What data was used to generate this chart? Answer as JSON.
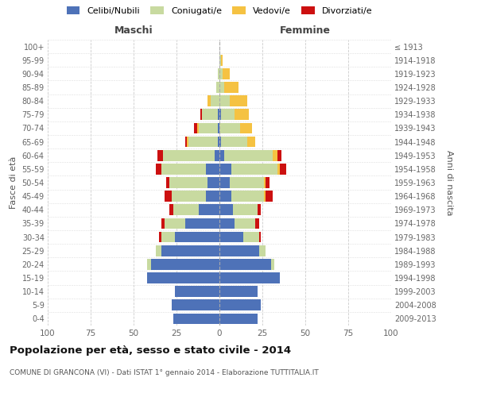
{
  "age_groups": [
    "0-4",
    "5-9",
    "10-14",
    "15-19",
    "20-24",
    "25-29",
    "30-34",
    "35-39",
    "40-44",
    "45-49",
    "50-54",
    "55-59",
    "60-64",
    "65-69",
    "70-74",
    "75-79",
    "80-84",
    "85-89",
    "90-94",
    "95-99",
    "100+"
  ],
  "birth_years": [
    "2009-2013",
    "2004-2008",
    "1999-2003",
    "1994-1998",
    "1989-1993",
    "1984-1988",
    "1979-1983",
    "1974-1978",
    "1969-1973",
    "1964-1968",
    "1959-1963",
    "1954-1958",
    "1949-1953",
    "1944-1948",
    "1939-1943",
    "1934-1938",
    "1929-1933",
    "1924-1928",
    "1919-1923",
    "1914-1918",
    "≤ 1913"
  ],
  "maschi": {
    "celibi": [
      27,
      28,
      26,
      42,
      40,
      34,
      26,
      20,
      12,
      8,
      7,
      8,
      3,
      1,
      1,
      1,
      0,
      0,
      0,
      0,
      0
    ],
    "coniugati": [
      0,
      0,
      0,
      0,
      2,
      3,
      8,
      12,
      15,
      20,
      22,
      26,
      30,
      17,
      11,
      9,
      5,
      2,
      1,
      0,
      0
    ],
    "vedovi": [
      0,
      0,
      0,
      0,
      0,
      0,
      0,
      0,
      0,
      0,
      0,
      0,
      0,
      1,
      1,
      0,
      2,
      0,
      0,
      0,
      0
    ],
    "divorziati": [
      0,
      0,
      0,
      0,
      0,
      0,
      1,
      2,
      2,
      4,
      2,
      3,
      3,
      1,
      2,
      1,
      0,
      0,
      0,
      0,
      0
    ]
  },
  "femmine": {
    "nubili": [
      22,
      24,
      22,
      35,
      30,
      23,
      14,
      9,
      8,
      7,
      6,
      7,
      3,
      1,
      0,
      1,
      0,
      0,
      0,
      0,
      0
    ],
    "coniugate": [
      0,
      0,
      0,
      0,
      2,
      4,
      9,
      12,
      14,
      19,
      20,
      27,
      28,
      15,
      12,
      8,
      6,
      3,
      2,
      1,
      0
    ],
    "vedove": [
      0,
      0,
      0,
      0,
      0,
      0,
      0,
      0,
      0,
      1,
      1,
      1,
      3,
      5,
      7,
      8,
      10,
      8,
      4,
      1,
      0
    ],
    "divorziate": [
      0,
      0,
      0,
      0,
      0,
      0,
      1,
      2,
      2,
      4,
      2,
      4,
      2,
      0,
      0,
      0,
      0,
      0,
      0,
      0,
      0
    ]
  },
  "colors": {
    "celibi": "#4e72b8",
    "coniugati": "#c8daa0",
    "vedovi": "#f5c242",
    "divorziati": "#cc1010"
  },
  "xlim": 100,
  "title": "Popolazione per età, sesso e stato civile - 2014",
  "subtitle": "COMUNE DI GRANCONA (VI) - Dati ISTAT 1° gennaio 2014 - Elaborazione TUTTITALIA.IT",
  "xlabel_left": "Maschi",
  "xlabel_right": "Femmine",
  "ylabel_left": "Fasce di età",
  "ylabel_right": "Anni di nascita",
  "legend_labels": [
    "Celibi/Nubili",
    "Coniugati/e",
    "Vedovi/e",
    "Divorziati/e"
  ],
  "background_color": "#ffffff",
  "bar_height": 0.8,
  "xticks": [
    100,
    75,
    50,
    25,
    0,
    25,
    50,
    75,
    100
  ],
  "xtick_vals": [
    -100,
    -75,
    -50,
    -25,
    0,
    25,
    50,
    75,
    100
  ]
}
